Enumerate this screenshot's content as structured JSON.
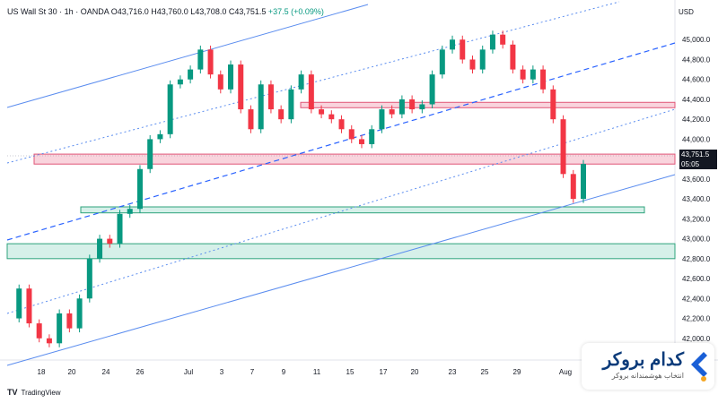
{
  "header": {
    "symbol": "US Wall St 30 · 1h · OANDA",
    "ohlc": "O43,716.0  H43,760.0  L43,708.0  C43,751.5",
    "change": "+37.5 (+0.09%)"
  },
  "currency": "USD",
  "price_tag": {
    "price": "43,751.5",
    "countdown": "05:05"
  },
  "footer": {
    "logo": "TV",
    "label": "TradingView"
  },
  "brand": {
    "name": "کدام بروکر",
    "tagline": "انتخاب هوشمندانه بروکر"
  },
  "colors": {
    "up": "#089981",
    "down": "#f23645",
    "channel_blue": "#2962ff",
    "resistance": "#f7c6d1",
    "support": "#c8ebe1"
  },
  "chart_data": {
    "type": "line",
    "title": "US Wall St 30 · 1h · OANDA",
    "xlabel": "",
    "ylabel": "",
    "ylim": [
      41800,
      45200
    ],
    "y_ticks": [
      42000,
      42200,
      42400,
      42600,
      42800,
      43000,
      43200,
      43400,
      43600,
      43800,
      44000,
      44200,
      44400,
      44600,
      44800,
      45000
    ],
    "y_tick_labels": [
      "42,000.0",
      "42,200.0",
      "42,400.0",
      "42,600.0",
      "42,800.0",
      "43,000.0",
      "43,200.0",
      "43,400.0",
      "43,600.0",
      "43,800.0",
      "44,000.0",
      "44,200.0",
      "44,400.0",
      "44,600.0",
      "44,800.0",
      "45,000.0"
    ],
    "x_ticks": [
      "18",
      "20",
      "24",
      "26",
      "Jul",
      "3",
      "7",
      "9",
      "11",
      "15",
      "17",
      "20",
      "23",
      "25",
      "29",
      "Aug"
    ],
    "series": [
      {
        "values": [
          42200,
          42500,
          42150,
          42000,
          41950,
          42250,
          42100,
          42400,
          42800,
          43000,
          42950,
          43250,
          43300,
          43700,
          44000,
          44050,
          44550,
          44600,
          44700,
          44900,
          44650,
          44500,
          44750,
          44300,
          44100,
          44550,
          44300,
          44200,
          44500,
          44650,
          44300,
          44250,
          44200,
          44100,
          44000,
          43950,
          44100,
          44300,
          44250,
          44400,
          44300,
          44350,
          44650,
          44900,
          45000,
          44800,
          44700,
          44900,
          45050,
          44950,
          44700,
          44600,
          44700,
          44500,
          44200,
          43650,
          43400,
          43751
        ]
      }
    ],
    "zones": [
      {
        "kind": "resistance",
        "low": 44320,
        "high": 44370
      },
      {
        "kind": "resistance",
        "low": 43750,
        "high": 43850
      },
      {
        "kind": "support",
        "low": 43260,
        "high": 43320
      },
      {
        "kind": "support",
        "low": 42800,
        "high": 42950
      }
    ],
    "last_price": 43751.5,
    "grid": false
  }
}
